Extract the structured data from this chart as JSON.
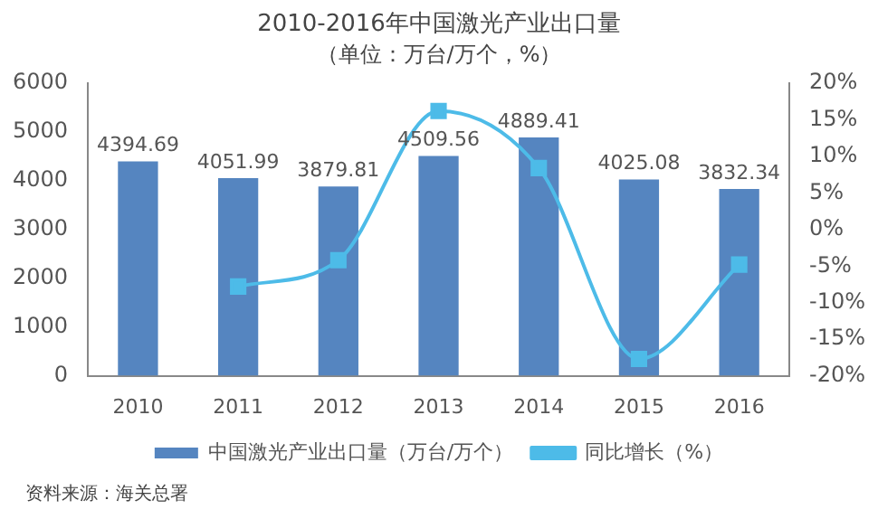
{
  "chart_data": {
    "type": "bar",
    "title": "2010-2016年中国激光产业出口量",
    "subtitle": "（单位：万台/万个，%）",
    "categories": [
      "2010",
      "2011",
      "2012",
      "2013",
      "2014",
      "2015",
      "2016"
    ],
    "series": [
      {
        "name": "中国激光产业出口量（万台/万个）",
        "color": "#5585c0",
        "values": [
          4394.69,
          4051.99,
          3879.81,
          4509.56,
          4889.41,
          4025.08,
          3832.34
        ],
        "value_labels": [
          "4394.69",
          "4051.99",
          "3879.81",
          "4509.56",
          "4889.41",
          "4025.08",
          "3832.34"
        ]
      },
      {
        "name": "同比增长（%）",
        "type": "line",
        "axis": "y2",
        "color": "#4dbbe8",
        "marker": "square",
        "values": [
          null,
          -7.8,
          -4.2,
          16.2,
          8.4,
          -17.7,
          -4.8
        ]
      }
    ],
    "ylim": [
      0,
      6000
    ],
    "yticks": [
      0,
      1000,
      2000,
      3000,
      4000,
      5000,
      6000
    ],
    "y2lim": [
      -20,
      20
    ],
    "y2ticks": [
      {
        "value": -20,
        "label": "-20%"
      },
      {
        "value": -15,
        "label": "-15%"
      },
      {
        "value": -10,
        "label": "-10%"
      },
      {
        "value": -5,
        "label": "-5%"
      },
      {
        "value": 0,
        "label": "0%"
      },
      {
        "value": 5,
        "label": "5%"
      },
      {
        "value": 10,
        "label": "10%"
      },
      {
        "value": 15,
        "label": "15%"
      },
      {
        "value": 20,
        "label": "20%"
      }
    ],
    "grid": false,
    "legend": "bottom",
    "annotations": [
      "资料来源：海关总署"
    ]
  }
}
